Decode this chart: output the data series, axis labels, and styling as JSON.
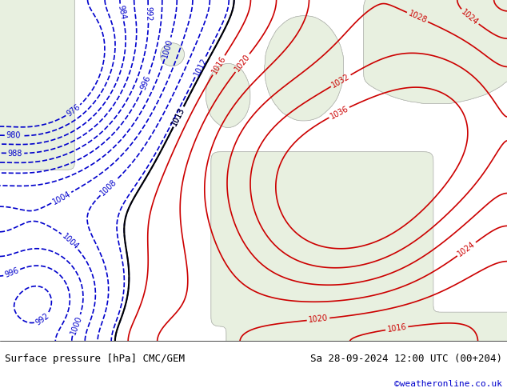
{
  "title_left": "Surface pressure [hPa] CMC/GEM",
  "title_right": "Sa 28-09-2024 12:00 UTC (00+204)",
  "credit": "©weatheronline.co.uk",
  "bg_color": "#d0e8f0",
  "land_color": "#e8f0e0",
  "border_color": "#aaaaaa",
  "blue_contour_color": "#0000cc",
  "red_contour_color": "#cc0000",
  "black_contour_color": "#000000",
  "title_color": "#000080",
  "credit_color": "#0000cc",
  "title_fontsize": 9,
  "credit_fontsize": 8,
  "fig_width": 6.34,
  "fig_height": 4.9,
  "dpi": 100
}
